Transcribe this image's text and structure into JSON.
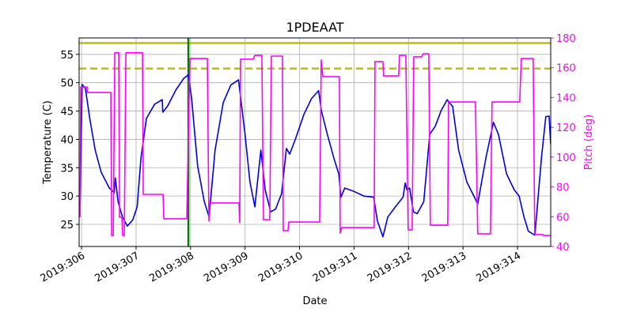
{
  "chart_data": {
    "type": "line",
    "title": "1PDEAAT",
    "x_label": "Date",
    "y_label": "Temperature (C)",
    "y2_label": "Pitch (deg)",
    "xlim": [
      305.955,
      314.61
    ],
    "xticks": [
      {
        "value": 306,
        "label": "2019:306"
      },
      {
        "value": 307,
        "label": "2019:307"
      },
      {
        "value": 308,
        "label": "2019:308"
      },
      {
        "value": 309,
        "label": "2019:309"
      },
      {
        "value": 310,
        "label": "2019:310"
      },
      {
        "value": 311,
        "label": "2019:311"
      },
      {
        "value": 312,
        "label": "2019:312"
      },
      {
        "value": 313,
        "label": "2019:313"
      },
      {
        "value": 314,
        "label": "2019:314"
      }
    ],
    "ylim": [
      21.1,
      57.9
    ],
    "yticks": [
      25,
      30,
      35,
      40,
      45,
      50,
      55
    ],
    "y2lim": [
      40,
      180
    ],
    "y2ticks": [
      40,
      60,
      80,
      100,
      120,
      140,
      160,
      180
    ],
    "y2_color": "#ff00ff",
    "grid": true,
    "hlines": [
      {
        "value": 57,
        "color": "#bfbf00",
        "style": "solid"
      },
      {
        "value": 52.5,
        "color": "#bfbf00",
        "style": "dashed"
      }
    ],
    "vlines": [
      {
        "value": 307.96,
        "color": "#008000",
        "style": "solid"
      }
    ],
    "series": [
      {
        "color": "#0000dd",
        "x": [
          305.97,
          306.01,
          306.07,
          306.15,
          306.25,
          306.36,
          306.51,
          306.6,
          306.62,
          306.67,
          306.75,
          306.84,
          306.94,
          307.02,
          307.09,
          307.19,
          307.34,
          307.48,
          307.49,
          307.58,
          307.73,
          307.87,
          307.96,
          308.02,
          308.13,
          308.25,
          308.34,
          308.45,
          308.6,
          308.74,
          308.88,
          309.0,
          309.09,
          309.18,
          309.29,
          309.37,
          309.47,
          309.56,
          309.67,
          309.76,
          309.82,
          309.93,
          310.08,
          310.22,
          310.35,
          310.4,
          310.51,
          310.63,
          310.72,
          310.76,
          310.83,
          310.98,
          311.18,
          311.36,
          311.43,
          311.53,
          311.62,
          311.76,
          311.9,
          311.94,
          311.97,
          312.02,
          312.09,
          312.16,
          312.28,
          312.39,
          312.49,
          312.6,
          312.71,
          312.81,
          312.92,
          313.07,
          313.21,
          313.27,
          313.42,
          313.56,
          313.65,
          313.8,
          313.94,
          314.03,
          314.12,
          314.2,
          314.32,
          314.44,
          314.52,
          314.58,
          314.61
        ],
        "values": [
          27.0,
          49.7,
          49.0,
          43.7,
          38.1,
          34.2,
          31.4,
          30.6,
          33.2,
          29.0,
          26.3,
          24.7,
          25.8,
          28.1,
          36.7,
          43.7,
          46.2,
          47.0,
          44.8,
          45.9,
          48.7,
          50.7,
          51.4,
          47.2,
          35.3,
          29.1,
          26.3,
          38.1,
          46.5,
          49.6,
          50.5,
          40.9,
          32.5,
          28.1,
          38.1,
          31.1,
          27.2,
          27.7,
          30.4,
          38.4,
          37.4,
          40.2,
          44.4,
          47.2,
          48.6,
          45.1,
          40.9,
          36.7,
          33.9,
          29.8,
          31.4,
          30.9,
          30.0,
          29.8,
          25.6,
          22.8,
          26.3,
          28.1,
          29.8,
          32.3,
          31.1,
          31.4,
          27.2,
          26.9,
          29.0,
          40.9,
          42.3,
          45.1,
          47.0,
          45.8,
          38.1,
          32.5,
          29.8,
          28.6,
          36.7,
          43.0,
          40.9,
          33.9,
          31.1,
          30.0,
          26.3,
          23.8,
          23.1,
          36.7,
          44.0,
          44.1,
          39.1
        ]
      },
      {
        "color": "#ff00ff",
        "axis": "y2",
        "x": [
          305.971,
          305.985,
          306.102,
          306.102,
          306.537,
          306.552,
          306.581,
          306.61,
          306.682,
          306.697,
          306.74,
          306.755,
          306.784,
          306.813,
          307.118,
          307.132,
          307.495,
          307.509,
          307.93,
          307.988,
          308.308,
          308.337,
          308.351,
          308.888,
          308.903,
          308.917,
          309.15,
          309.179,
          309.309,
          309.338,
          309.454,
          309.483,
          309.687,
          309.701,
          309.788,
          309.803,
          310.369,
          310.398,
          310.427,
          310.731,
          310.746,
          310.775,
          311.37,
          311.385,
          311.53,
          311.544,
          311.82,
          311.834,
          311.951,
          311.994,
          312.067,
          312.096,
          312.241,
          312.27,
          312.372,
          312.401,
          312.72,
          312.735,
          313.228,
          313.271,
          313.504,
          313.533,
          314.041,
          314.07,
          314.288,
          314.317,
          314.462,
          314.476,
          314.607
        ],
        "values": [
          59.6,
          147.1,
          147.1,
          143.4,
          143.4,
          47.4,
          47.4,
          170.0,
          170.0,
          59.6,
          59.6,
          47.4,
          47.4,
          170.0,
          170.0,
          75.0,
          75.0,
          58.6,
          58.6,
          166.2,
          166.2,
          57.0,
          69.2,
          69.2,
          56.0,
          165.7,
          165.7,
          168.3,
          168.3,
          58.0,
          58.0,
          167.8,
          167.8,
          50.6,
          50.6,
          56.4,
          56.4,
          165.2,
          154.0,
          154.0,
          49.0,
          52.7,
          52.7,
          164.1,
          164.1,
          154.5,
          154.5,
          168.3,
          168.3,
          51.1,
          51.1,
          167.3,
          167.3,
          169.4,
          169.4,
          54.3,
          54.3,
          137.0,
          137.0,
          48.5,
          48.5,
          137.0,
          137.0,
          166.2,
          166.2,
          48.0,
          48.0,
          47.4,
          47.4
        ]
      }
    ]
  }
}
